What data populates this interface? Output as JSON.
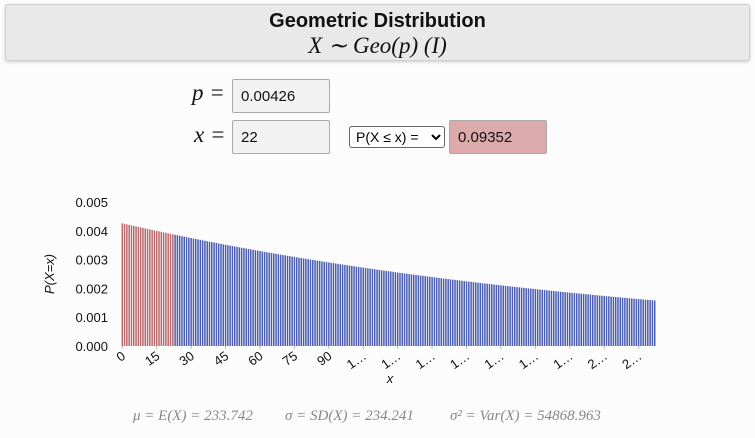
{
  "header": {
    "title": "Geometric Distribution",
    "subtitle": "X ∼ Geo(p) (I)"
  },
  "inputs": {
    "p": {
      "label": "p =",
      "value": "0.00426"
    },
    "x": {
      "label": "x =",
      "value": "22"
    },
    "mode": "P(X ≤ x) =",
    "result": "0.09352"
  },
  "chart_data": {
    "type": "bar",
    "xlabel": "x",
    "ylabel": "P(X=x)",
    "color": "#4a5db0",
    "highlight_color": "#b86a6c",
    "grid": false,
    "xlim": [
      -1,
      233
    ],
    "ylim": [
      0,
      0.005
    ],
    "xticks": [
      0,
      15,
      30,
      45,
      60,
      75,
      90,
      {
        "value": 105,
        "label": "1…"
      },
      {
        "value": 120,
        "label": "1…"
      },
      {
        "value": 135,
        "label": "1…"
      },
      {
        "value": 150,
        "label": "1…"
      },
      {
        "value": 165,
        "label": "1…"
      },
      {
        "value": 180,
        "label": "1…"
      },
      {
        "value": 195,
        "label": "1…"
      },
      {
        "value": 210,
        "label": "2…"
      },
      {
        "value": 225,
        "label": "2…"
      }
    ],
    "yticks": [
      {
        "value": 0,
        "label": "0.000"
      },
      0.001,
      0.002,
      0.003,
      0.004,
      0.005
    ],
    "x": [
      0,
      1,
      2,
      3,
      4,
      5,
      6,
      7,
      8,
      9,
      10,
      11,
      12,
      13,
      14,
      15,
      16,
      17,
      18,
      19,
      20,
      21,
      22,
      23,
      24,
      25,
      26,
      27,
      28,
      29,
      30,
      31,
      32,
      33,
      34,
      35,
      36,
      37,
      38,
      39,
      40,
      41,
      42,
      43,
      44,
      45,
      46,
      47,
      48,
      49,
      50,
      51,
      52,
      53,
      54,
      55,
      56,
      57,
      58,
      59,
      60,
      61,
      62,
      63,
      64,
      65,
      66,
      67,
      68,
      69,
      70,
      71,
      72,
      73,
      74,
      75,
      76,
      77,
      78,
      79,
      80,
      81,
      82,
      83,
      84,
      85,
      86,
      87,
      88,
      89,
      90,
      91,
      92,
      93,
      94,
      95,
      96,
      97,
      98,
      99,
      100,
      101,
      102,
      103,
      104,
      105,
      106,
      107,
      108,
      109,
      110,
      111,
      112,
      113,
      114,
      115,
      116,
      117,
      118,
      119,
      120,
      121,
      122,
      123,
      124,
      125,
      126,
      127,
      128,
      129,
      130,
      131,
      132,
      133,
      134,
      135,
      136,
      137,
      138,
      139,
      140,
      141,
      142,
      143,
      144,
      145,
      146,
      147,
      148,
      149,
      150,
      151,
      152,
      153,
      154,
      155,
      156,
      157,
      158,
      159,
      160,
      161,
      162,
      163,
      164,
      165,
      166,
      167,
      168,
      169,
      170,
      171,
      172,
      173,
      174,
      175,
      176,
      177,
      178,
      179,
      180,
      181,
      182,
      183,
      184,
      185,
      186,
      187,
      188,
      189,
      190,
      191,
      192,
      193,
      194,
      195,
      196,
      197,
      198,
      199,
      200,
      201,
      202,
      203,
      204,
      205,
      206,
      207,
      208,
      209,
      210,
      211,
      212,
      213,
      214,
      215,
      216,
      217,
      218,
      219,
      220,
      221,
      222,
      223,
      224,
      225,
      226,
      227,
      228,
      229,
      230,
      231,
      232
    ],
    "values": [
      0.00426,
      0.004242,
      0.004224,
      0.004207,
      0.004189,
      0.004171,
      0.004153,
      0.004135,
      0.004118,
      0.0041,
      0.004082,
      0.004065,
      0.004048,
      0.004031,
      0.004014,
      0.003997,
      0.00398,
      0.003963,
      0.003945,
      0.003928,
      0.003911,
      0.003895,
      0.003879,
      0.003862,
      0.003846,
      0.00383,
      0.003813,
      0.003797,
      0.00378,
      0.003764,
      0.003748,
      0.003732,
      0.003717,
      0.003701,
      0.003685,
      0.00367,
      0.003654,
      0.003638,
      0.003623,
      0.003607,
      0.003591,
      0.003576,
      0.003561,
      0.003546,
      0.003531,
      0.003516,
      0.003501,
      0.003486,
      0.003471,
      0.003456,
      0.003441,
      0.003427,
      0.003412,
      0.003398,
      0.003384,
      0.003369,
      0.003355,
      0.00334,
      0.003326,
      0.003312,
      0.003297,
      0.003284,
      0.00327,
      0.003256,
      0.003242,
      0.003228,
      0.003215,
      0.003201,
      0.003187,
      0.003173,
      0.00316,
      0.003146,
      0.003133,
      0.00312,
      0.003107,
      0.003094,
      0.00308,
      0.003067,
      0.003054,
      0.003041,
      0.003028,
      0.003015,
      0.003002,
      0.00299,
      0.002977,
      0.002964,
      0.002952,
      0.002939,
      0.002926,
      0.002914,
      0.002901,
      0.002889,
      0.002877,
      0.002865,
      0.002852,
      0.00284,
      0.002828,
      0.002816,
      0.002804,
      0.002792,
      0.00278,
      0.002768,
      0.002756,
      0.002745,
      0.002733,
      0.002722,
      0.00271,
      0.002698,
      0.002687,
      0.002675,
      0.002664,
      0.002652,
      0.002641,
      0.00263,
      0.002619,
      0.002608,
      0.002597,
      0.002586,
      0.002575,
      0.002563,
      0.002552,
      0.002542,
      0.002531,
      0.00252,
      0.00251,
      0.002499,
      0.002488,
      0.002478,
      0.002467,
      0.002456,
      0.002446,
      0.002435,
      0.002425,
      0.002415,
      0.002405,
      0.002395,
      0.002384,
      0.002374,
      0.002364,
      0.002354,
      0.002343,
      0.002333,
      0.002324,
      0.002314,
      0.002304,
      0.002294,
      0.002285,
      0.002275,
      0.002265,
      0.002255,
      0.002245,
      0.002236,
      0.002227,
      0.002217,
      0.002208,
      0.002198,
      0.002189,
      0.00218,
      0.00217,
      0.002161,
      0.002152,
      0.002143,
      0.002134,
      0.002125,
      0.002116,
      0.002107,
      0.002098,
      0.002089,
      0.00208,
      0.002071,
      0.002062,
      0.002053,
      0.002044,
      0.002036,
      0.002027,
      0.002019,
      0.00201,
      0.002001,
      0.001993,
      0.001984,
      0.001976,
      0.001967,
      0.001959,
      0.001951,
      0.001943,
      0.001934,
      0.001926,
      0.001918,
      0.00191,
      0.001901,
      0.001893,
      0.001885,
      0.001877,
      0.001869,
      0.001861,
      0.001853,
      0.001845,
      0.001838,
      0.00183,
      0.001822,
      0.001814,
      0.001806,
      0.001799,
      0.001791,
      0.001784,
      0.001776,
      0.001768,
      0.001761,
      0.001753,
      0.001746,
      0.001738,
      0.001731,
      0.001723,
      0.001716,
      0.001709,
      0.001702,
      0.001694,
      0.001687,
      0.00168,
      0.001673,
      0.001665,
      0.001658,
      0.001651,
      0.001644,
      0.001637,
      0.00163,
      0.001623,
      0.001616,
      0.001609,
      0.001602,
      0.001596,
      0.001589,
      0.001582
    ]
  },
  "stats": {
    "mean": "μ = E(X) = 233.742",
    "sd": "σ = SD(X) = 234.241",
    "var": "σ² = Var(X) = 54868.963"
  }
}
